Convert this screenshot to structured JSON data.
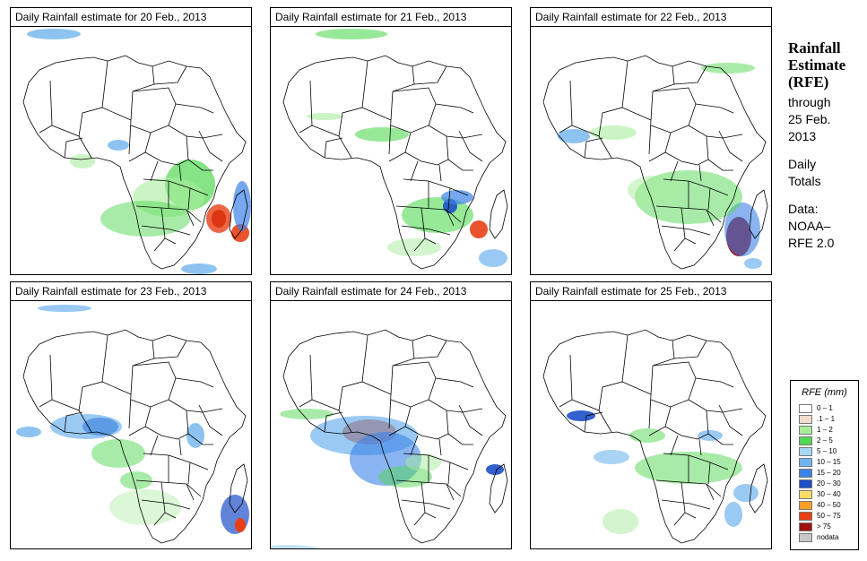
{
  "panels": [
    {
      "title": "Daily Rainfall estimate for  20 Feb., 2013"
    },
    {
      "title": "Daily Rainfall estimate for  21 Feb., 2013"
    },
    {
      "title": "Daily Rainfall estimate for  22 Feb., 2013"
    },
    {
      "title": "Daily Rainfall estimate for  23 Feb., 2013"
    },
    {
      "title": "Daily Rainfall estimate for  24 Feb., 2013"
    },
    {
      "title": "Daily Rainfall estimate for  25 Feb., 2013"
    }
  ],
  "side": {
    "title_line1": "Rainfall",
    "title_line2": "Estimate",
    "title_line3": "(RFE)",
    "through_label": "through",
    "through_date_line1": "25 Feb.",
    "through_date_line2": "2013",
    "period_line1": "Daily",
    "period_line2": "Totals",
    "data_label": "Data:",
    "source_line1": "NOAA–",
    "source_line2": "RFE 2.0"
  },
  "legend": {
    "title": "RFE (mm)",
    "items": [
      {
        "label": "0 – 1",
        "color": "#ffffff"
      },
      {
        "label": ".1 – 1",
        "color": "#f0dcc8"
      },
      {
        "label": "1 – 2",
        "color": "#a8ec9c"
      },
      {
        "label": "2 – 5",
        "color": "#52d852"
      },
      {
        "label": "5 – 10",
        "color": "#a6d8f4"
      },
      {
        "label": "10 – 15",
        "color": "#6fb4ee"
      },
      {
        "label": "15 – 20",
        "color": "#3c82e8"
      },
      {
        "label": "20 – 30",
        "color": "#1e50c8"
      },
      {
        "label": "30 – 40",
        "color": "#f8dc64"
      },
      {
        "label": "40 – 50",
        "color": "#f8a024"
      },
      {
        "label": "50 – 75",
        "color": "#e84014"
      },
      {
        "label": "> 75",
        "color": "#a01010"
      },
      {
        "label": "nodata",
        "color": "#c8c8c8"
      }
    ]
  }
}
